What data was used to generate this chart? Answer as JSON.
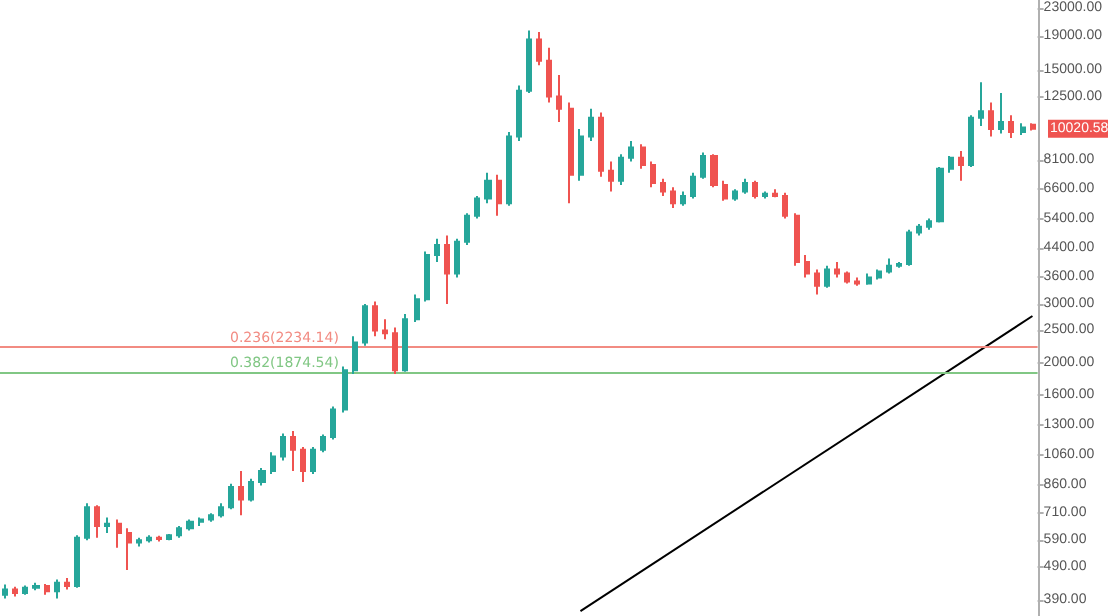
{
  "chart_data": {
    "type": "candlestick",
    "categories": [
      null,
      null,
      null,
      null,
      null,
      null,
      null,
      null,
      null,
      null,
      null,
      null,
      null,
      null,
      null,
      null,
      null,
      null,
      null,
      null,
      null,
      null,
      null,
      null,
      null,
      null,
      null,
      null,
      null,
      null,
      null,
      null,
      null,
      null,
      null,
      null,
      null,
      null,
      null,
      null,
      null,
      null,
      null,
      null,
      null,
      null,
      null,
      null,
      null,
      null,
      null,
      null,
      null,
      null,
      null,
      null,
      null,
      null,
      null,
      null,
      null,
      null,
      null,
      null,
      null,
      null,
      null,
      null,
      null,
      null,
      null,
      null,
      null,
      null,
      null,
      null,
      null,
      null,
      null,
      null,
      null,
      null,
      null,
      null,
      null,
      null,
      null,
      null,
      null,
      null,
      null,
      null,
      null,
      null,
      null,
      null,
      null,
      null,
      null,
      null,
      null
    ],
    "ohlc": [
      [
        405,
        435,
        395,
        420
      ],
      [
        420,
        428,
        400,
        410
      ],
      [
        410,
        432,
        405,
        425
      ],
      [
        425,
        440,
        418,
        430
      ],
      [
        430,
        436,
        405,
        415
      ],
      [
        415,
        450,
        395,
        440
      ],
      [
        440,
        455,
        420,
        430
      ],
      [
        430,
        610,
        425,
        600
      ],
      [
        600,
        760,
        590,
        740
      ],
      [
        740,
        750,
        600,
        650
      ],
      [
        650,
        690,
        620,
        660
      ],
      [
        660,
        680,
        560,
        620
      ],
      [
        620,
        640,
        480,
        580
      ],
      [
        580,
        600,
        565,
        590
      ],
      [
        590,
        610,
        580,
        600
      ],
      [
        600,
        608,
        585,
        595
      ],
      [
        595,
        615,
        590,
        610
      ],
      [
        610,
        650,
        600,
        640
      ],
      [
        640,
        680,
        630,
        670
      ],
      [
        670,
        690,
        650,
        680
      ],
      [
        680,
        710,
        670,
        700
      ],
      [
        700,
        760,
        690,
        740
      ],
      [
        740,
        870,
        730,
        850
      ],
      [
        850,
        950,
        700,
        780
      ],
      [
        780,
        900,
        770,
        880
      ],
      [
        880,
        970,
        860,
        950
      ],
      [
        950,
        1080,
        930,
        1050
      ],
      [
        1050,
        1230,
        1020,
        1200
      ],
      [
        1200,
        1250,
        950,
        1100
      ],
      [
        1100,
        1120,
        880,
        950
      ],
      [
        950,
        1120,
        930,
        1100
      ],
      [
        1100,
        1220,
        1080,
        1200
      ],
      [
        1200,
        1480,
        1180,
        1450
      ],
      [
        1450,
        1950,
        1420,
        1900
      ],
      [
        1900,
        2400,
        1850,
        2300
      ],
      [
        2300,
        3000,
        2250,
        2950
      ],
      [
        2950,
        3050,
        2400,
        2500
      ],
      [
        2500,
        2700,
        2350,
        2450
      ],
      [
        2450,
        2550,
        1850,
        1900
      ],
      [
        1900,
        2800,
        1880,
        2700
      ],
      [
        2700,
        3200,
        2650,
        3100
      ],
      [
        3100,
        4300,
        3050,
        4200
      ],
      [
        4200,
        4700,
        4000,
        4500
      ],
      [
        4500,
        4800,
        3000,
        3700
      ],
      [
        3700,
        4700,
        3600,
        4600
      ],
      [
        4600,
        5600,
        4500,
        5500
      ],
      [
        5500,
        6300,
        5400,
        6200
      ],
      [
        6200,
        7400,
        6000,
        7000
      ],
      [
        7000,
        7300,
        5500,
        6000
      ],
      [
        6000,
        9800,
        5900,
        9500
      ],
      [
        9500,
        13500,
        9200,
        13000
      ],
      [
        13000,
        19700,
        12800,
        18500
      ],
      [
        18500,
        19500,
        15500,
        16000
      ],
      [
        16000,
        17500,
        12000,
        12500
      ],
      [
        12500,
        14500,
        10500,
        11500
      ],
      [
        11500,
        12000,
        6000,
        7300
      ],
      [
        7300,
        10000,
        7000,
        9500
      ],
      [
        9500,
        11500,
        9200,
        10800
      ],
      [
        10800,
        11200,
        7200,
        7500
      ],
      [
        7500,
        8000,
        6500,
        7000
      ],
      [
        7000,
        8400,
        6800,
        8200
      ],
      [
        8200,
        9200,
        8000,
        8800
      ],
      [
        8800,
        9000,
        7600,
        7800
      ],
      [
        7800,
        8000,
        6700,
        6900
      ],
      [
        6900,
        7100,
        6300,
        6500
      ],
      [
        6500,
        6700,
        5800,
        6000
      ],
      [
        6000,
        6500,
        5900,
        6300
      ],
      [
        6300,
        7400,
        6200,
        7200
      ],
      [
        7200,
        8500,
        7100,
        8300
      ],
      [
        8300,
        8400,
        6700,
        6800
      ],
      [
        6800,
        7000,
        6100,
        6200
      ],
      [
        6200,
        6600,
        6100,
        6500
      ],
      [
        6500,
        7100,
        6400,
        6900
      ],
      [
        6900,
        7000,
        6200,
        6300
      ],
      [
        6300,
        6500,
        6200,
        6400
      ],
      [
        6400,
        6600,
        6250,
        6300
      ],
      [
        6300,
        6450,
        5400,
        5500
      ],
      [
        5500,
        5600,
        3900,
        4000
      ],
      [
        4000,
        4200,
        3600,
        3700
      ],
      [
        3700,
        3800,
        3200,
        3400
      ],
      [
        3400,
        3900,
        3350,
        3800
      ],
      [
        3800,
        4000,
        3600,
        3700
      ],
      [
        3700,
        3750,
        3450,
        3500
      ],
      [
        3500,
        3600,
        3400,
        3450
      ],
      [
        3450,
        3700,
        3420,
        3600
      ],
      [
        3600,
        3800,
        3550,
        3750
      ],
      [
        3750,
        4100,
        3700,
        3900
      ],
      [
        3900,
        4000,
        3850,
        3950
      ],
      [
        3950,
        5000,
        3900,
        4900
      ],
      [
        4900,
        5200,
        4800,
        5100
      ],
      [
        5100,
        5400,
        5000,
        5300
      ],
      [
        5300,
        7700,
        5250,
        7600
      ],
      [
        7600,
        8300,
        7400,
        8200
      ],
      [
        8200,
        8600,
        7000,
        7800
      ],
      [
        7800,
        11000,
        7700,
        10800
      ],
      [
        10800,
        13800,
        10200,
        11300
      ],
      [
        11300,
        12000,
        9500,
        10000
      ],
      [
        10000,
        12800,
        9700,
        10500
      ],
      [
        10500,
        11000,
        9400,
        9800
      ],
      [
        9800,
        10400,
        9600,
        10100
      ],
      [
        10300,
        10400,
        9900,
        10020.58
      ]
    ],
    "colors": [
      "#26a69a",
      "#ef5350",
      "#26a69a",
      "#26a69a",
      "#ef5350",
      "#26a69a",
      "#ef5350",
      "#26a69a",
      "#26a69a",
      "#ef5350",
      "#26a69a",
      "#ef5350",
      "#ef5350",
      "#26a69a",
      "#26a69a",
      "#ef5350",
      "#26a69a",
      "#26a69a",
      "#26a69a",
      "#26a69a",
      "#26a69a",
      "#26a69a",
      "#26a69a",
      "#ef5350",
      "#26a69a",
      "#26a69a",
      "#26a69a",
      "#26a69a",
      "#ef5350",
      "#ef5350",
      "#26a69a",
      "#26a69a",
      "#26a69a",
      "#26a69a",
      "#26a69a",
      "#26a69a",
      "#ef5350",
      "#ef5350",
      "#ef5350",
      "#26a69a",
      "#26a69a",
      "#26a69a",
      "#26a69a",
      "#ef5350",
      "#26a69a",
      "#26a69a",
      "#26a69a",
      "#26a69a",
      "#ef5350",
      "#26a69a",
      "#26a69a",
      "#26a69a",
      "#ef5350",
      "#ef5350",
      "#ef5350",
      "#ef5350",
      "#26a69a",
      "#26a69a",
      "#ef5350",
      "#ef5350",
      "#26a69a",
      "#26a69a",
      "#ef5350",
      "#ef5350",
      "#ef5350",
      "#ef5350",
      "#26a69a",
      "#26a69a",
      "#26a69a",
      "#ef5350",
      "#ef5350",
      "#26a69a",
      "#26a69a",
      "#ef5350",
      "#26a69a",
      "#ef5350",
      "#ef5350",
      "#ef5350",
      "#ef5350",
      "#ef5350",
      "#26a69a",
      "#ef5350",
      "#ef5350",
      "#ef5350",
      "#26a69a",
      "#26a69a",
      "#26a69a",
      "#26a69a",
      "#26a69a",
      "#26a69a",
      "#26a69a",
      "#26a69a",
      "#26a69a",
      "#ef5350",
      "#26a69a",
      "#26a69a",
      "#ef5350",
      "#26a69a",
      "#ef5350",
      "#26a69a",
      "#ef5350"
    ],
    "series": [
      {
        "type": "line",
        "color": "#000000",
        "line_style": "solid",
        "values": [
          null,
          null,
          null,
          null,
          null,
          null,
          null,
          null,
          null,
          null,
          null,
          null,
          null,
          null,
          null,
          null,
          null,
          null,
          null,
          null,
          null,
          null,
          null,
          null,
          null,
          null,
          null,
          null,
          null,
          null,
          null,
          null,
          null,
          null,
          null,
          null,
          null,
          null,
          null,
          null,
          null,
          null,
          null,
          null,
          null,
          null,
          null,
          null,
          null,
          null,
          null,
          null,
          null,
          null,
          null,
          null,
          362,
          null,
          null,
          null,
          null,
          null,
          null,
          null,
          null,
          null,
          null,
          null,
          null,
          null,
          null,
          null,
          null,
          null,
          null,
          null,
          null,
          null,
          null,
          null,
          null,
          null,
          null,
          null,
          null,
          null,
          null,
          null,
          null,
          null,
          null,
          null,
          null,
          null,
          null,
          null,
          null,
          null,
          null,
          null,
          2760
        ]
      }
    ],
    "log": "y",
    "ylim": [
      350,
      24300
    ],
    "yticks": [
      {
        "value": 390,
        "label": "390.00"
      },
      {
        "value": 490,
        "label": "490.00"
      },
      {
        "value": 590,
        "label": "590.00"
      },
      {
        "value": 710,
        "label": "710.00"
      },
      {
        "value": 860,
        "label": "860.00"
      },
      {
        "value": 1060,
        "label": "1060.00"
      },
      {
        "value": 1300,
        "label": "1300.00"
      },
      {
        "value": 1600,
        "label": "1600.00"
      },
      {
        "value": 2000,
        "label": "2000.00"
      },
      {
        "value": 2500,
        "label": "2500.00"
      },
      {
        "value": 3000,
        "label": "3000.00"
      },
      {
        "value": 3600,
        "label": "3600.00"
      },
      {
        "value": 4400,
        "label": "4400.00"
      },
      {
        "value": 5400,
        "label": "5400.00"
      },
      {
        "value": 6600,
        "label": "6600.00"
      },
      {
        "value": 8100,
        "label": "8100.00"
      },
      {
        "value": 12500,
        "label": "12500.00"
      },
      {
        "value": 15000,
        "label": "15000.00"
      },
      {
        "value": 19000,
        "label": "19000.00"
      },
      {
        "value": 23000,
        "label": "23000.00"
      }
    ],
    "tick_labels": "y",
    "grid": false,
    "ref_lines": [
      {
        "axis": "y",
        "value": 2234.14,
        "label": "0.236(2234.14)",
        "color": "#f28b82"
      },
      {
        "axis": "y",
        "value": 1874.54,
        "label": "0.382(1874.54)",
        "color": "#81c784"
      }
    ],
    "annotations": [
      "10020.58"
    ]
  }
}
